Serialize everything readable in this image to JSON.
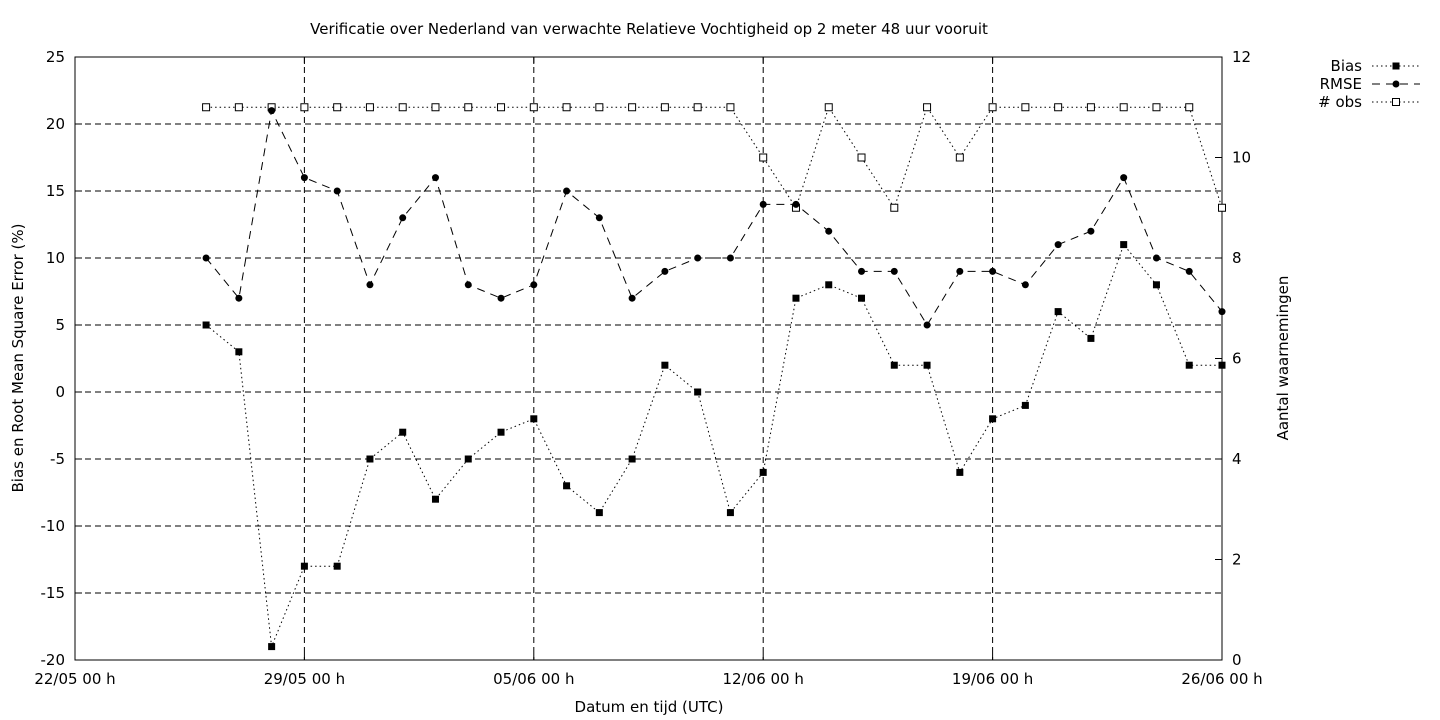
{
  "chart_data": {
    "type": "line",
    "title": "Verificatie over Nederland van verwachte Relatieve Vochtigheid op 2 meter 48 uur vooruit",
    "xlabel": "Datum en tijd (UTC)",
    "ylabel": "Bias en Root Mean Square Error (%)",
    "y2label": "Aantal waarnemingen",
    "xlim": [
      "2024-05-22T00:00",
      "2024-06-26T00:00"
    ],
    "x_ticks": [
      "22/05 00 h",
      "29/05 00 h",
      "05/06 00 h",
      "12/06 00 h",
      "19/06 00 h",
      "26/06 00 h"
    ],
    "ylim": [
      -20,
      25
    ],
    "y_ticks": [
      "-20",
      "-15",
      "-10",
      "-5",
      "0",
      "5",
      "10",
      "15",
      "20",
      "25"
    ],
    "y2lim": [
      0,
      12
    ],
    "y2_ticks": [
      "0",
      "2",
      "4",
      "6",
      "8",
      "10",
      "12"
    ],
    "grid": true,
    "legend_position": "top-right",
    "x": [
      "2024-05-26T00:00",
      "2024-05-27T00:00",
      "2024-05-28T00:00",
      "2024-05-29T00:00",
      "2024-05-30T00:00",
      "2024-05-31T00:00",
      "2024-06-01T00:00",
      "2024-06-02T00:00",
      "2024-06-03T00:00",
      "2024-06-04T00:00",
      "2024-06-05T00:00",
      "2024-06-06T00:00",
      "2024-06-07T00:00",
      "2024-06-08T00:00",
      "2024-06-09T00:00",
      "2024-06-10T00:00",
      "2024-06-11T00:00",
      "2024-06-12T00:00",
      "2024-06-13T00:00",
      "2024-06-14T00:00",
      "2024-06-15T00:00",
      "2024-06-16T00:00",
      "2024-06-17T00:00",
      "2024-06-18T00:00",
      "2024-06-19T00:00",
      "2024-06-20T00:00",
      "2024-06-21T00:00",
      "2024-06-22T00:00",
      "2024-06-23T00:00",
      "2024-06-24T00:00",
      "2024-06-25T00:00",
      "2024-06-26T00:00"
    ],
    "series": [
      {
        "name": "Bias",
        "axis": "left",
        "marker": "filled-square",
        "line": "dotted",
        "values": [
          5,
          3,
          -19,
          -13,
          -13,
          -5,
          -3,
          -8,
          -5,
          -3,
          -2,
          -7,
          -9,
          -5,
          2,
          0,
          -9,
          -6,
          7,
          8,
          7,
          2,
          2,
          -6,
          -2,
          -1,
          6,
          4,
          11,
          8,
          2,
          2
        ]
      },
      {
        "name": "RMSE",
        "axis": "left",
        "marker": "filled-circle",
        "line": "dashed",
        "values": [
          10,
          7,
          21,
          16,
          15,
          8,
          13,
          16,
          8,
          7,
          8,
          15,
          13,
          7,
          9,
          10,
          10,
          14,
          14,
          12,
          9,
          9,
          5,
          9,
          9,
          8,
          11,
          12,
          16,
          10,
          9,
          6
        ]
      },
      {
        "name": "# obs",
        "axis": "right",
        "marker": "open-square",
        "line": "dotted",
        "values": [
          11,
          11,
          11,
          11,
          11,
          11,
          11,
          11,
          11,
          11,
          11,
          11,
          11,
          11,
          11,
          11,
          11,
          10,
          9,
          11,
          10,
          9,
          11,
          10,
          11,
          11,
          11,
          11,
          11,
          11,
          11,
          9
        ]
      }
    ]
  }
}
